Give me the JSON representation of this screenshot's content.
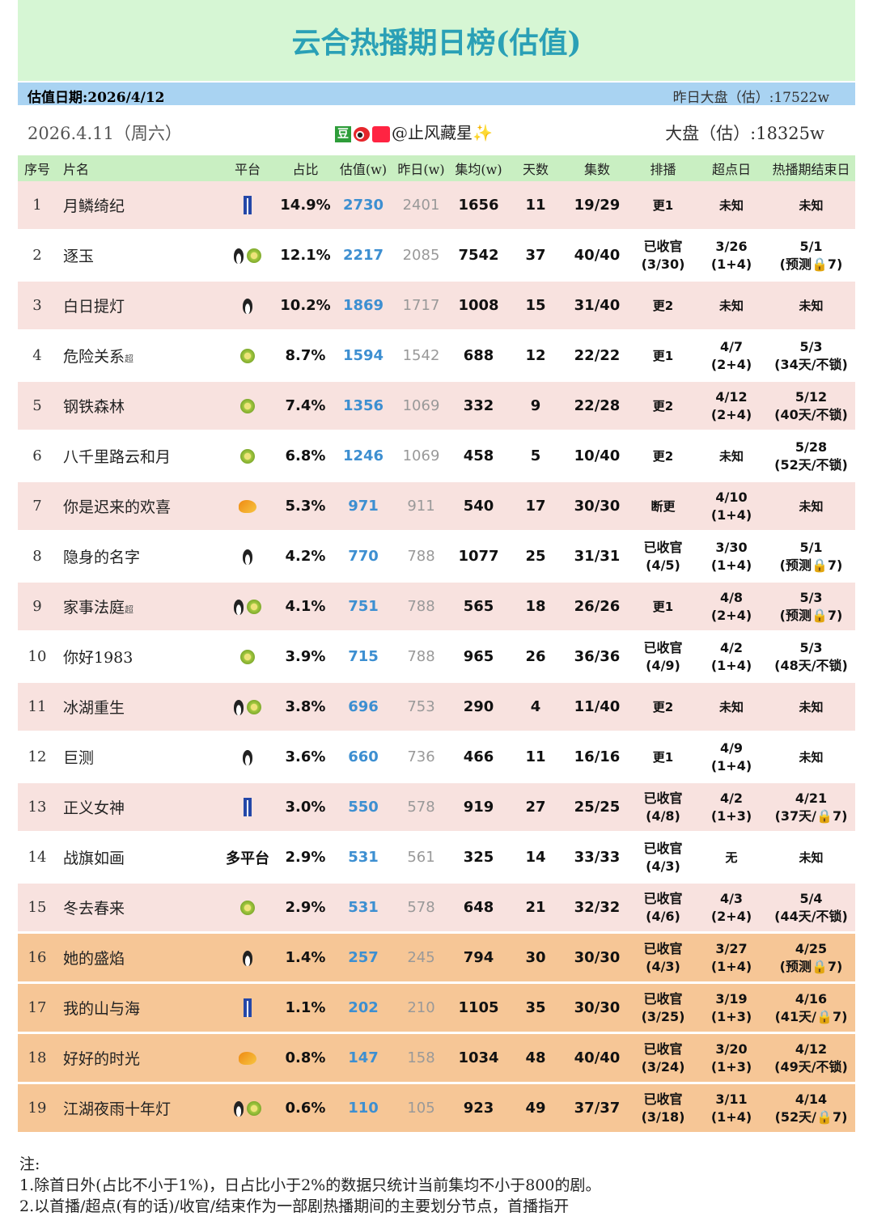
{
  "header": {
    "title": "云合热播期日榜(估值)",
    "date_label": "估值日期:2026/4/12",
    "yesterday_market": "昨日大盘（估）:17522w",
    "day": "2026.4.11（周六）",
    "author_badge": "豆",
    "author": "@止风藏星✨",
    "market": "大盘（估）:18325w"
  },
  "table": {
    "columns": [
      "序号",
      "片名",
      "平台",
      "占比",
      "估值(w)",
      "昨日(w)",
      "集均(w)",
      "天数",
      "集数",
      "排播",
      "超点日",
      "热播期结束日"
    ],
    "rows": [
      {
        "rank": "1",
        "title": "月鳞绮纪",
        "share": "14.9%",
        "estimate": "2730",
        "yesterday": "2401",
        "average": "1656",
        "days": "11",
        "episodes": "19/29",
        "schedule": "更1",
        "peak_day": "未知",
        "end_day": "未知"
      },
      {
        "rank": "2",
        "title": "逐玉",
        "share": "12.1%",
        "estimate": "2217",
        "yesterday": "2085",
        "average": "7542",
        "days": "37",
        "episodes": "40/40",
        "schedule": [
          "已收官",
          "(3/30)"
        ],
        "peak_day": [
          "3/26",
          "(1+4)"
        ],
        "end_day": [
          "5/1",
          "(预测🔒7)"
        ]
      },
      {
        "rank": "3",
        "title": "白日提灯",
        "share": "10.2%",
        "estimate": "1869",
        "yesterday": "1717",
        "average": "1008",
        "days": "15",
        "episodes": "31/40",
        "schedule": "更2",
        "peak_day": "未知",
        "end_day": "未知"
      },
      {
        "rank": "4",
        "title": "危险关系",
        "tag": "超",
        "share": "8.7%",
        "estimate": "1594",
        "yesterday": "1542",
        "average": "688",
        "days": "12",
        "episodes": "22/22",
        "schedule": "更1",
        "peak_day": [
          "4/7",
          "(2+4)"
        ],
        "end_day": [
          "5/3",
          "(34天/不锁)"
        ]
      },
      {
        "rank": "5",
        "title": "钢铁森林",
        "share": "7.4%",
        "estimate": "1356",
        "yesterday": "1069",
        "average": "332",
        "days": "9",
        "episodes": "22/28",
        "schedule": "更2",
        "peak_day": [
          "4/12",
          "(2+4)"
        ],
        "end_day": [
          "5/12",
          "(40天/不锁)"
        ]
      },
      {
        "rank": "6",
        "title": "八千里路云和月",
        "share": "6.8%",
        "estimate": "1246",
        "yesterday": "1069",
        "average": "458",
        "days": "5",
        "episodes": "10/40",
        "schedule": "更2",
        "peak_day": "未知",
        "end_day": [
          "5/28",
          "(52天/不锁)"
        ]
      },
      {
        "rank": "7",
        "title": "你是迟来的欢喜",
        "share": "5.3%",
        "estimate": "971",
        "yesterday": "911",
        "average": "540",
        "days": "17",
        "episodes": "30/30",
        "schedule": "断更",
        "peak_day": [
          "4/10",
          "(1+4)"
        ],
        "end_day": "未知"
      },
      {
        "rank": "8",
        "title": "隐身的名字",
        "share": "4.2%",
        "estimate": "770",
        "yesterday": "788",
        "average": "1077",
        "days": "25",
        "episodes": "31/31",
        "schedule": [
          "已收官",
          "(4/5)"
        ],
        "peak_day": [
          "3/30",
          "(1+4)"
        ],
        "end_day": [
          "5/1",
          "(预测🔒7)"
        ]
      },
      {
        "rank": "9",
        "title": "家事法庭",
        "tag": "超",
        "share": "4.1%",
        "estimate": "751",
        "yesterday": "788",
        "average": "565",
        "days": "18",
        "episodes": "26/26",
        "schedule": "更1",
        "peak_day": [
          "4/8",
          "(2+4)"
        ],
        "end_day": [
          "5/3",
          "(预测🔒7)"
        ]
      },
      {
        "rank": "10",
        "title": "你好1983",
        "share": "3.9%",
        "estimate": "715",
        "yesterday": "788",
        "average": "965",
        "days": "26",
        "episodes": "36/36",
        "schedule": [
          "已收官",
          "(4/9)"
        ],
        "peak_day": [
          "4/2",
          "(1+4)"
        ],
        "end_day": [
          "5/3",
          "(48天/不锁)"
        ]
      },
      {
        "rank": "11",
        "title": "冰湖重生",
        "share": "3.8%",
        "estimate": "696",
        "yesterday": "753",
        "average": "290",
        "days": "4",
        "episodes": "11/40",
        "schedule": "更2",
        "peak_day": "未知",
        "end_day": "未知"
      },
      {
        "rank": "12",
        "title": "巨测",
        "share": "3.6%",
        "estimate": "660",
        "yesterday": "736",
        "average": "466",
        "days": "11",
        "episodes": "16/16",
        "schedule": "更1",
        "peak_day": [
          "4/9",
          "(1+4)"
        ],
        "end_day": "未知"
      },
      {
        "rank": "13",
        "title": "正义女神",
        "share": "3.0%",
        "estimate": "550",
        "yesterday": "578",
        "average": "919",
        "days": "27",
        "episodes": "25/25",
        "schedule": [
          "已收官",
          "(4/8)"
        ],
        "peak_day": [
          "4/2",
          "(1+3)"
        ],
        "end_day": [
          "4/21",
          "(37天/🔒7)"
        ]
      },
      {
        "rank": "14",
        "title": "战旗如画",
        "platform": "多平台",
        "share": "2.9%",
        "estimate": "531",
        "yesterday": "561",
        "average": "325",
        "days": "14",
        "episodes": "33/33",
        "schedule": [
          "已收官",
          "(4/3)"
        ],
        "peak_day": "无",
        "end_day": "未知"
      },
      {
        "rank": "15",
        "title": "冬去春来",
        "share": "2.9%",
        "estimate": "531",
        "yesterday": "578",
        "average": "648",
        "days": "21",
        "episodes": "32/32",
        "schedule": [
          "已收官",
          "(4/6)"
        ],
        "peak_day": [
          "4/3",
          "(2+4)"
        ],
        "end_day": [
          "5/4",
          "(44天/不锁)"
        ]
      },
      {
        "rank": "16",
        "title": "她的盛焰",
        "share": "1.4%",
        "estimate": "257",
        "yesterday": "245",
        "average": "794",
        "days": "30",
        "episodes": "30/30",
        "schedule": [
          "已收官",
          "(4/3)"
        ],
        "peak_day": [
          "3/27",
          "(1+4)"
        ],
        "end_day": [
          "4/25",
          "(预测🔒7)"
        ]
      },
      {
        "rank": "17",
        "title": "我的山与海",
        "share": "1.1%",
        "estimate": "202",
        "yesterday": "210",
        "average": "1105",
        "days": "35",
        "episodes": "30/30",
        "schedule": [
          "已收官",
          "(3/25)"
        ],
        "peak_day": [
          "3/19",
          "(1+3)"
        ],
        "end_day": [
          "4/16",
          "(41天/🔒7)"
        ]
      },
      {
        "rank": "18",
        "title": "好好的时光",
        "share": "0.8%",
        "estimate": "147",
        "yesterday": "158",
        "average": "1034",
        "days": "48",
        "episodes": "40/40",
        "schedule": [
          "已收官",
          "(3/24)"
        ],
        "peak_day": [
          "3/20",
          "(1+3)"
        ],
        "end_day": [
          "4/12",
          "(49天/不锁)"
        ]
      },
      {
        "rank": "19",
        "title": "江湖夜雨十年灯",
        "share": "0.6%",
        "estimate": "110",
        "yesterday": "105",
        "average": "923",
        "days": "49",
        "episodes": "37/37",
        "schedule": [
          "已收官",
          "(3/18)"
        ],
        "peak_day": [
          "3/11",
          "(1+4)"
        ],
        "end_day": [
          "4/14",
          "(52天/🔒7)"
        ]
      }
    ]
  },
  "notes": [
    "注:",
    "1.除首日外(占比不小于1%)，日占比小于2%的数据只统计当前集均不小于800的剧。",
    "2.以首播/超点(有的话)/收官/结束作为一部剧热播期间的主要划分节点，首播指开"
  ]
}
